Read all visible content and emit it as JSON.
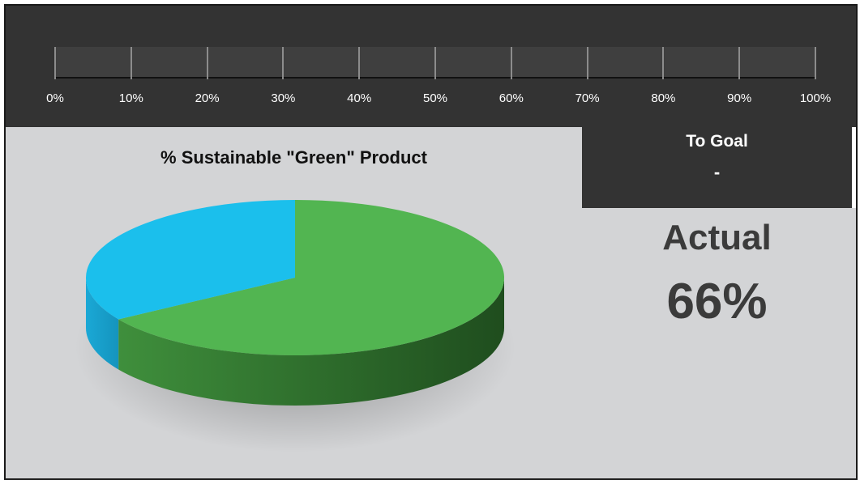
{
  "scale": {
    "labels": [
      "0%",
      "10%",
      "20%",
      "30%",
      "40%",
      "50%",
      "60%",
      "70%",
      "80%",
      "90%",
      "100%"
    ],
    "track_color": "#3f3f3f",
    "panel_color": "#333333"
  },
  "goal": {
    "title": "To Goal",
    "value": "-"
  },
  "actual": {
    "label": "Actual",
    "value": "66%"
  },
  "chart_data": {
    "type": "pie",
    "title": "% Sustainable \"Green\" Product",
    "style": "3d",
    "slices": [
      {
        "value": 66,
        "color": "#52b551"
      },
      {
        "value": 34,
        "color": "#1bbfec"
      }
    ]
  }
}
